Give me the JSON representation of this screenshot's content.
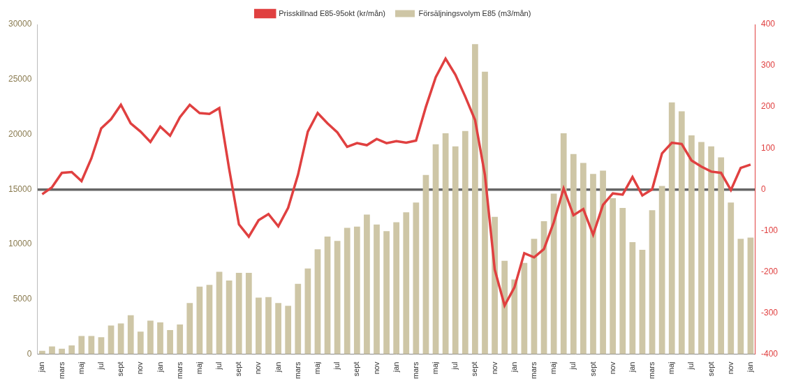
{
  "chart_data": {
    "type": "bar",
    "categories": [
      "jan",
      null,
      "mars",
      null,
      "maj",
      null,
      "jul",
      null,
      "sept",
      null,
      "nov",
      null,
      "jan",
      null,
      "mars",
      null,
      "maj",
      null,
      "jul",
      null,
      "sept",
      null,
      "nov",
      null,
      "jan",
      null,
      "mars",
      null,
      "maj",
      null,
      "jul",
      null,
      "sept",
      null,
      "nov",
      null,
      "jan",
      null,
      "mars",
      null,
      "maj",
      null,
      "jul",
      null,
      "sept",
      null,
      "nov",
      null,
      "jan",
      null,
      "mars",
      null,
      "maj",
      null,
      "jul",
      null,
      "sept",
      null,
      "nov",
      null,
      "jan",
      null,
      "mars",
      null,
      "maj",
      null,
      "jul",
      null,
      "sept",
      null,
      "nov",
      null,
      "jan"
    ],
    "series": [
      {
        "name": "Försäljningsvolym E85 (m3/mån)",
        "type": "bar",
        "color": "#cec6a6",
        "values": [
          300,
          700,
          500,
          800,
          1650,
          1650,
          1550,
          2600,
          2800,
          3550,
          2050,
          3050,
          2900,
          2200,
          2700,
          4650,
          6150,
          6300,
          7500,
          6700,
          7400,
          7400,
          5150,
          5200,
          4650,
          4400,
          6400,
          7800,
          9550,
          10700,
          10300,
          11500,
          11600,
          12700,
          11800,
          11200,
          12000,
          12900,
          13800,
          16300,
          19100,
          20100,
          18900,
          20300,
          28200,
          25700,
          12500,
          8500,
          6800,
          8300,
          10500,
          12100,
          14600,
          20100,
          18200,
          17400,
          16400,
          16700,
          14200,
          13300,
          10200,
          9500,
          13100,
          15300,
          22900,
          22100,
          19900,
          19300,
          18900,
          17900,
          13800,
          10500,
          10600
        ]
      },
      {
        "name": "Prisskillnad E85-95okt (kr/mån)",
        "type": "line",
        "axis": "y2",
        "color": "#e04040",
        "values": [
          -12,
          5,
          40,
          42,
          20,
          75,
          148,
          170,
          205,
          160,
          140,
          115,
          152,
          130,
          175,
          205,
          185,
          183,
          197,
          50,
          -85,
          -115,
          -75,
          -60,
          -90,
          -45,
          35,
          140,
          185,
          160,
          138,
          103,
          112,
          107,
          122,
          112,
          117,
          113,
          118,
          200,
          272,
          317,
          278,
          225,
          168,
          35,
          -195,
          -282,
          -238,
          -155,
          -165,
          -145,
          -80,
          2,
          -63,
          -48,
          -110,
          -38,
          -10,
          -13,
          30,
          -15,
          0,
          87,
          113,
          110,
          70,
          55,
          43,
          40,
          -2,
          52,
          60
        ]
      }
    ],
    "ylim": [
      0,
      30000
    ],
    "yticks": [
      0,
      5000,
      10000,
      15000,
      20000,
      25000,
      30000
    ],
    "y2lim": [
      -400,
      400
    ],
    "y2ticks": [
      -400,
      -300,
      -200,
      -100,
      0,
      100,
      200,
      300,
      400
    ],
    "grid": false,
    "legend": "top"
  }
}
